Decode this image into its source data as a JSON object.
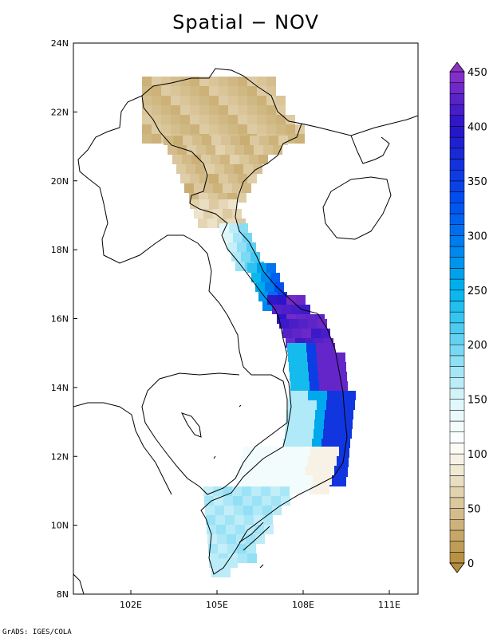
{
  "title": "Spatial − NOV",
  "credit": "GrADS: IGES/COLA",
  "map": {
    "lon_range": [
      100,
      112
    ],
    "lat_range": [
      8,
      24
    ],
    "lon_ticks": [
      {
        "v": 102,
        "label": "102E"
      },
      {
        "v": 105,
        "label": "105E"
      },
      {
        "v": 108,
        "label": "108E"
      },
      {
        "v": 111,
        "label": "111E"
      }
    ],
    "lat_ticks": [
      {
        "v": 24,
        "label": "24N"
      },
      {
        "v": 22,
        "label": "22N"
      },
      {
        "v": 20,
        "label": "20N"
      },
      {
        "v": 18,
        "label": "18N"
      },
      {
        "v": 16,
        "label": "16N"
      },
      {
        "v": 14,
        "label": "14N"
      },
      {
        "v": 12,
        "label": "12N"
      },
      {
        "v": 10,
        "label": "10N"
      },
      {
        "v": 8,
        "label": "8N"
      }
    ]
  },
  "colorbar": {
    "min": 0,
    "max": 450,
    "step": 10,
    "labels": [
      {
        "v": 450,
        "label": "450"
      },
      {
        "v": 400,
        "label": "400"
      },
      {
        "v": 350,
        "label": "350"
      },
      {
        "v": 300,
        "label": "300"
      },
      {
        "v": 250,
        "label": "250"
      },
      {
        "v": 200,
        "label": "200"
      },
      {
        "v": 150,
        "label": "150"
      },
      {
        "v": 100,
        "label": "100"
      },
      {
        "v": 50,
        "label": "50"
      },
      {
        "v": 0,
        "label": "0"
      }
    ],
    "colors": {
      "dry_dark": "#b48c3c",
      "dry_light": "#f4eedc",
      "white": "#ffffff",
      "wet_light": "#dcf6fa",
      "cyan": "#00b4ec",
      "blue": "#0050f0",
      "deep_blue": "#2814c8",
      "purple": "#8c32c8"
    }
  }
}
